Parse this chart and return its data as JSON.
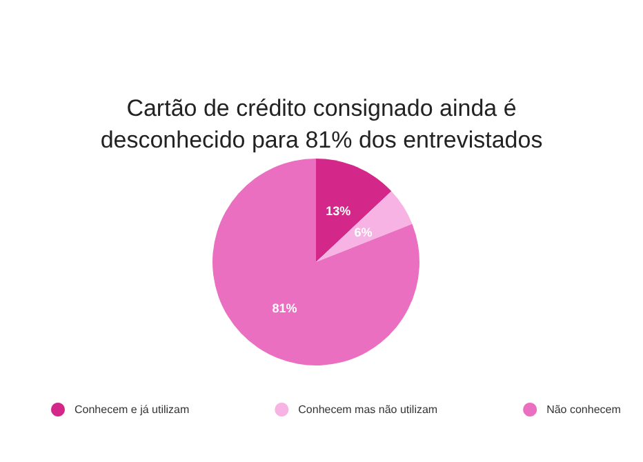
{
  "chart_data": {
    "type": "pie",
    "title": "Cartão de crédito consignado ainda é\ndesconhecido para 81% dos entrevistados",
    "categories": [
      "Conhecem e já utilizam",
      "Conhecem mas não utilizam",
      "Não conhecem"
    ],
    "values": [
      13,
      6,
      81
    ],
    "colors": [
      "#d3278a",
      "#f6b3e3",
      "#ea6fc0"
    ],
    "value_labels": [
      "13%",
      "6%",
      "81%"
    ],
    "legend": "bottom"
  }
}
